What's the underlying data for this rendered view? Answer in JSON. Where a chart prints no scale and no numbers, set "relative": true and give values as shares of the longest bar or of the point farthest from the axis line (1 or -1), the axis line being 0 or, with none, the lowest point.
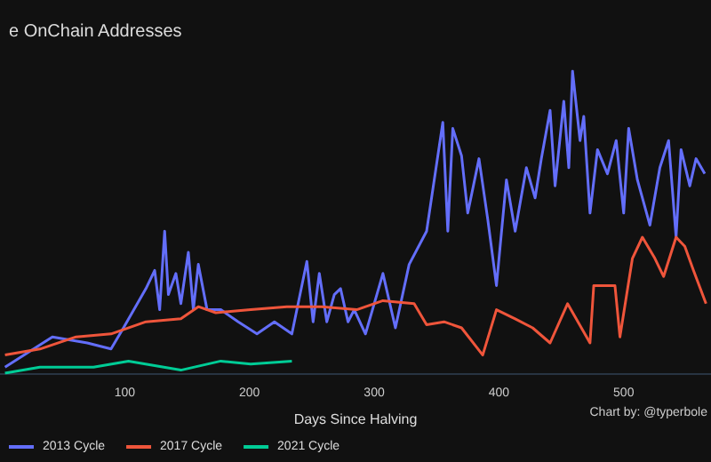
{
  "chart_data": {
    "type": "line",
    "title": "e OnChain Addresses",
    "xlabel": "Days Since Halving",
    "relative": true,
    "grid": false,
    "legend": "bottom left",
    "marker": "none",
    "line_style": "solid",
    "annotations": [
      "Chart by: @typerbole"
    ],
    "xlim": [
      0,
      570
    ],
    "xticks": [
      100,
      200,
      300,
      400,
      500
    ],
    "series": [
      {
        "name": "2013 Cycle",
        "color": "#636efa",
        "x": [
          4,
          42,
          70,
          89,
          99,
          117,
          124,
          128,
          132,
          135,
          141,
          145,
          151,
          155,
          159,
          166,
          177,
          191,
          206,
          220,
          234,
          246,
          251,
          256,
          262,
          268,
          273,
          279,
          284,
          293,
          307,
          317,
          328,
          342,
          355,
          359,
          363,
          370,
          375,
          384,
          391,
          398,
          406,
          413,
          422,
          429,
          434,
          441,
          445,
          452,
          456,
          459,
          465,
          468,
          473,
          479,
          487,
          494,
          500,
          504,
          511,
          521,
          529,
          536,
          542,
          546,
          553,
          558,
          565
        ],
        "values": [
          0.02,
          0.12,
          0.1,
          0.08,
          0.15,
          0.28,
          0.34,
          0.21,
          0.47,
          0.26,
          0.33,
          0.23,
          0.4,
          0.21,
          0.36,
          0.21,
          0.21,
          0.17,
          0.13,
          0.17,
          0.13,
          0.37,
          0.17,
          0.33,
          0.17,
          0.26,
          0.28,
          0.17,
          0.21,
          0.13,
          0.33,
          0.15,
          0.36,
          0.47,
          0.83,
          0.47,
          0.81,
          0.72,
          0.53,
          0.71,
          0.51,
          0.29,
          0.64,
          0.47,
          0.68,
          0.58,
          0.71,
          0.87,
          0.62,
          0.9,
          0.68,
          1,
          0.77,
          0.85,
          0.53,
          0.74,
          0.66,
          0.77,
          0.53,
          0.81,
          0.64,
          0.49,
          0.68,
          0.77,
          0.45,
          0.74,
          0.62,
          0.71,
          0.66
        ]
      },
      {
        "name": "2017 Cycle",
        "color": "#ef553b",
        "x": [
          4,
          32,
          61,
          89,
          117,
          145,
          159,
          173,
          201,
          230,
          258,
          286,
          307,
          332,
          342,
          356,
          370,
          387,
          398,
          413,
          427,
          441,
          455,
          473,
          476,
          493,
          497,
          507,
          515,
          525,
          532,
          542,
          549,
          556,
          566
        ],
        "values": [
          0.06,
          0.08,
          0.12,
          0.13,
          0.17,
          0.18,
          0.22,
          0.2,
          0.21,
          0.22,
          0.22,
          0.21,
          0.24,
          0.23,
          0.16,
          0.17,
          0.15,
          0.06,
          0.21,
          0.18,
          0.15,
          0.1,
          0.23,
          0.1,
          0.29,
          0.29,
          0.12,
          0.38,
          0.45,
          0.38,
          0.32,
          0.45,
          0.42,
          0.34,
          0.23
        ]
      },
      {
        "name": "2021 Cycle",
        "color": "#00cc96",
        "x": [
          4,
          32,
          75,
          103,
          145,
          177,
          201,
          234
        ],
        "values": [
          0,
          0.02,
          0.02,
          0.04,
          0.01,
          0.04,
          0.03,
          0.04
        ]
      }
    ]
  }
}
